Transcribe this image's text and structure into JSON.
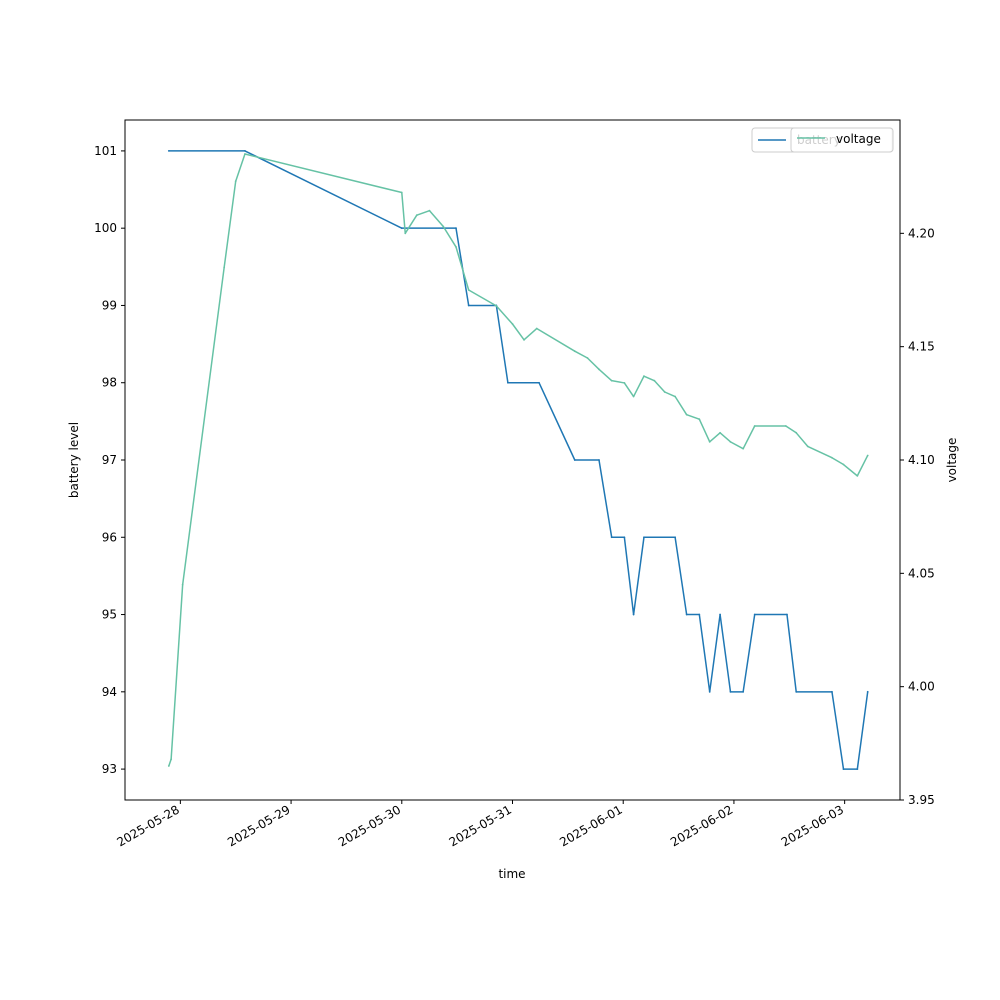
{
  "chart_data": {
    "type": "line",
    "xlabel": "time",
    "ylabel_left": "battery level",
    "ylabel_right": "voltage",
    "x_ticks": [
      "2025-05-28",
      "2025-05-29",
      "2025-05-30",
      "2025-05-31",
      "2025-06-01",
      "2025-06-02",
      "2025-06-03"
    ],
    "xlim": [
      "2025-05-27T12:00",
      "2025-06-03T12:00"
    ],
    "y_left": {
      "ylim": [
        92.6,
        101.4
      ],
      "ticks": [
        93,
        94,
        95,
        96,
        97,
        98,
        99,
        100,
        101
      ]
    },
    "y_right": {
      "ylim": [
        3.95,
        4.25
      ],
      "ticks": [
        "3.95",
        "4.00",
        "4.05",
        "4.10",
        "4.15",
        "4.20"
      ]
    },
    "grid": false,
    "legend": {
      "placement": "top-right",
      "entries": [
        "battery",
        "voltage"
      ]
    },
    "series": [
      {
        "name": "battery",
        "axis": "left",
        "color": "#1f77b4",
        "points": [
          [
            "2025-05-27T21:30",
            101
          ],
          [
            "2025-05-28T14:00",
            101
          ],
          [
            "2025-05-30T00:00",
            100
          ],
          [
            "2025-05-30T11:45",
            100
          ],
          [
            "2025-05-30T14:30",
            99
          ],
          [
            "2025-05-30T20:30",
            99
          ],
          [
            "2025-05-30T23:00",
            98
          ],
          [
            "2025-05-31T05:45",
            98
          ],
          [
            "2025-05-31T13:30",
            97
          ],
          [
            "2025-05-31T18:45",
            97
          ],
          [
            "2025-05-31T21:30",
            96
          ],
          [
            "2025-06-01T00:15",
            96
          ],
          [
            "2025-06-01T02:15",
            95
          ],
          [
            "2025-06-01T04:30",
            96
          ],
          [
            "2025-06-01T11:15",
            96
          ],
          [
            "2025-06-01T13:45",
            95
          ],
          [
            "2025-06-01T16:30",
            95
          ],
          [
            "2025-06-01T18:45",
            94
          ],
          [
            "2025-06-01T21:00",
            95
          ],
          [
            "2025-06-01T23:15",
            94
          ],
          [
            "2025-06-02T02:00",
            94
          ],
          [
            "2025-06-02T04:30",
            95
          ],
          [
            "2025-06-02T11:30",
            95
          ],
          [
            "2025-06-02T13:30",
            94
          ],
          [
            "2025-06-02T21:15",
            94
          ],
          [
            "2025-06-02T23:45",
            93
          ],
          [
            "2025-06-03T02:45",
            93
          ],
          [
            "2025-06-03T05:00",
            94
          ]
        ]
      },
      {
        "name": "voltage",
        "axis": "right",
        "color": "#66c2a5",
        "points": [
          [
            "2025-05-27T21:30",
            3.965
          ],
          [
            "2025-05-27T22:00",
            3.968
          ],
          [
            "2025-05-28T00:30",
            4.045
          ],
          [
            "2025-05-28T09:30",
            4.185
          ],
          [
            "2025-05-28T12:00",
            4.223
          ],
          [
            "2025-05-28T14:00",
            4.235
          ],
          [
            "2025-05-30T00:00",
            4.218
          ],
          [
            "2025-05-30T00:45",
            4.2
          ],
          [
            "2025-05-30T03:15",
            4.208
          ],
          [
            "2025-05-30T06:00",
            4.21
          ],
          [
            "2025-05-30T09:00",
            4.203
          ],
          [
            "2025-05-30T11:45",
            4.194
          ],
          [
            "2025-05-30T14:30",
            4.175
          ],
          [
            "2025-05-30T20:30",
            4.168
          ],
          [
            "2025-05-31T00:00",
            4.16
          ],
          [
            "2025-05-31T02:30",
            4.153
          ],
          [
            "2025-05-31T05:15",
            4.158
          ],
          [
            "2025-05-31T13:30",
            4.148
          ],
          [
            "2025-05-31T16:15",
            4.145
          ],
          [
            "2025-05-31T18:45",
            4.14
          ],
          [
            "2025-05-31T21:30",
            4.135
          ],
          [
            "2025-06-01T00:15",
            4.134
          ],
          [
            "2025-06-01T02:15",
            4.128
          ],
          [
            "2025-06-01T04:30",
            4.137
          ],
          [
            "2025-06-01T06:45",
            4.135
          ],
          [
            "2025-06-01T09:00",
            4.13
          ],
          [
            "2025-06-01T11:15",
            4.128
          ],
          [
            "2025-06-01T13:45",
            4.12
          ],
          [
            "2025-06-01T16:30",
            4.118
          ],
          [
            "2025-06-01T18:45",
            4.108
          ],
          [
            "2025-06-01T21:00",
            4.112
          ],
          [
            "2025-06-01T23:15",
            4.108
          ],
          [
            "2025-06-02T02:00",
            4.105
          ],
          [
            "2025-06-02T04:30",
            4.115
          ],
          [
            "2025-06-02T11:15",
            4.115
          ],
          [
            "2025-06-02T13:30",
            4.112
          ],
          [
            "2025-06-02T16:00",
            4.106
          ],
          [
            "2025-06-02T21:15",
            4.101
          ],
          [
            "2025-06-02T23:45",
            4.098
          ],
          [
            "2025-06-03T02:45",
            4.093
          ],
          [
            "2025-06-03T05:00",
            4.102
          ]
        ]
      }
    ]
  }
}
